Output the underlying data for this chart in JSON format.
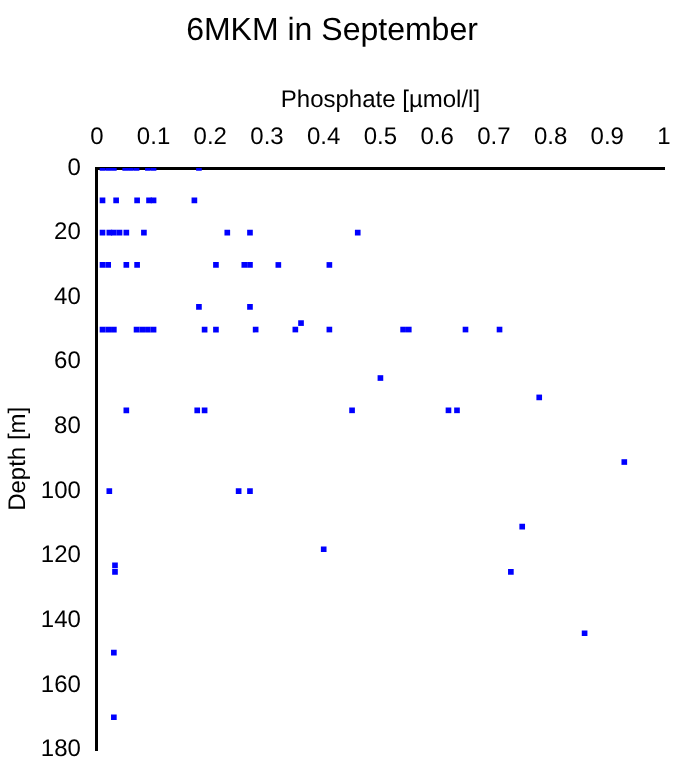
{
  "chart_data": {
    "type": "scatter",
    "title": "6MKM in September",
    "xlabel": "Phosphate [µmol/l]",
    "ylabel": "Depth [m]",
    "xlim": [
      0,
      1
    ],
    "xticks": [
      0,
      0.1,
      0.2,
      0.3,
      0.4,
      0.5,
      0.6,
      0.7,
      0.8,
      0.9,
      1
    ],
    "ylim": [
      180,
      0
    ],
    "yticks": [
      0,
      20,
      40,
      60,
      80,
      100,
      120,
      140,
      160,
      180
    ],
    "marker": "square",
    "grid": false,
    "legend": false,
    "series": [
      {
        "color": "#0000ff",
        "x": [
          0.01,
          0.02,
          0.03,
          0.05,
          0.06,
          0.07,
          0.09,
          0.1,
          0.18,
          0.01,
          0.034,
          0.071,
          0.092,
          0.1,
          0.172,
          0.01,
          0.022,
          0.03,
          0.04,
          0.052,
          0.083,
          0.23,
          0.27,
          0.46,
          0.01,
          0.02,
          0.052,
          0.071,
          0.21,
          0.26,
          0.27,
          0.32,
          0.41,
          0.18,
          0.27,
          0.01,
          0.02,
          0.03,
          0.07,
          0.08,
          0.09,
          0.1,
          0.19,
          0.21,
          0.28,
          0.35,
          0.41,
          0.54,
          0.55,
          0.65,
          0.71,
          0.36,
          0.5,
          0.78,
          0.052,
          0.177,
          0.19,
          0.45,
          0.62,
          0.635,
          0.022,
          0.25,
          0.27,
          0.93,
          0.75,
          0.4,
          0.032,
          0.032,
          0.73,
          0.86,
          0.03,
          0.03
        ],
        "values": [
          0,
          0,
          0,
          0,
          0,
          0,
          0,
          0,
          0,
          10,
          10,
          10,
          10,
          10,
          10,
          20,
          20,
          20,
          20,
          20,
          20,
          20,
          20,
          20,
          30,
          30,
          30,
          30,
          30,
          30,
          30,
          30,
          30,
          43,
          43,
          50,
          50,
          50,
          50,
          50,
          50,
          50,
          50,
          50,
          50,
          50,
          50,
          50,
          50,
          50,
          50,
          48,
          65,
          71,
          75,
          75,
          75,
          75,
          75,
          75,
          100,
          100,
          100,
          91,
          111,
          118,
          123,
          125,
          125,
          144,
          150,
          170
        ]
      }
    ]
  }
}
